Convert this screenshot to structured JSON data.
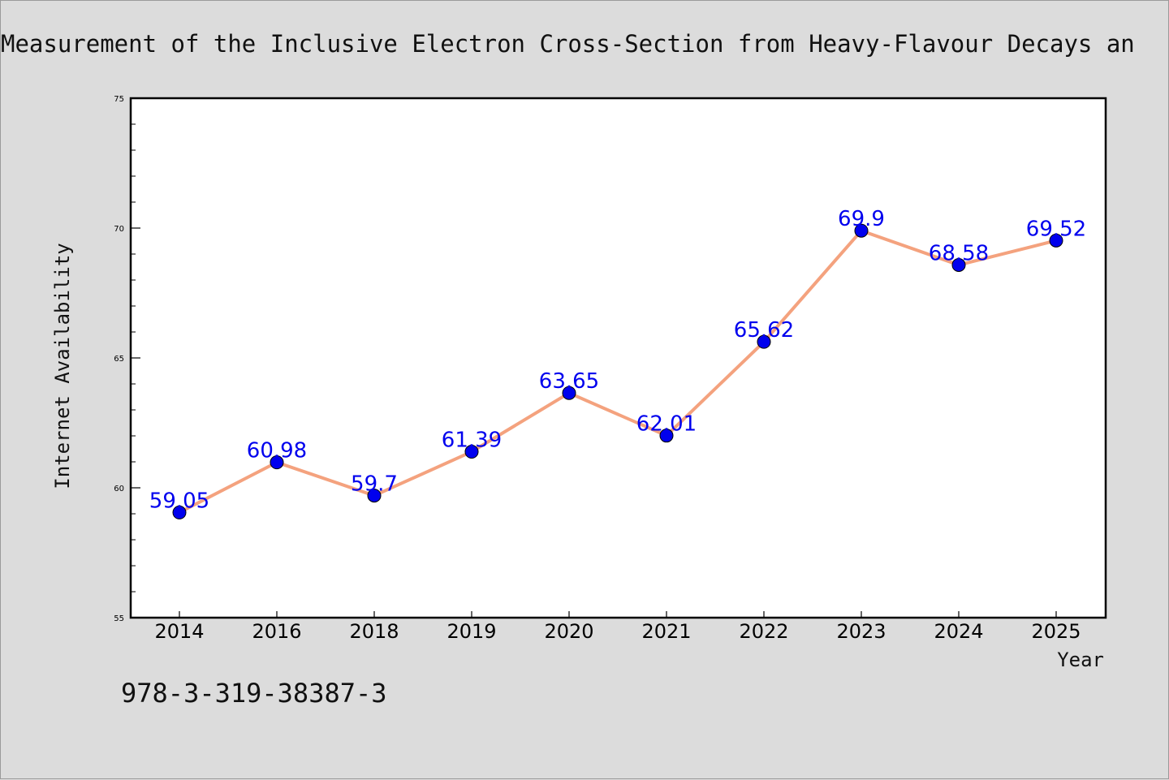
{
  "chart_data": {
    "type": "line",
    "title": "Measurement of the Inclusive Electron Cross-Section from Heavy-Flavour Decays an",
    "xlabel": "Year",
    "ylabel": "Internet Availability",
    "categories": [
      "2014",
      "2016",
      "2018",
      "2019",
      "2020",
      "2021",
      "2022",
      "2023",
      "2024",
      "2025"
    ],
    "series": [
      {
        "values": [
          59.05,
          60.98,
          59.7,
          61.39,
          63.65,
          62.01,
          65.62,
          69.9,
          68.58,
          69.52
        ],
        "data_labels": [
          "59.05",
          "60.98",
          "59.7",
          "61.39",
          "63.65",
          "62.01",
          "65.62",
          "69.9",
          "68.58",
          "69.52"
        ]
      }
    ],
    "ylim": [
      55,
      75
    ],
    "yticks": [
      "55",
      "60",
      "65",
      "70",
      "75"
    ],
    "grid": false,
    "line_color": "#f4a27e",
    "marker_color": "#0000ee",
    "label_color": "#0000ee"
  },
  "footer": {
    "isbn": "978-3-319-38387-3"
  }
}
